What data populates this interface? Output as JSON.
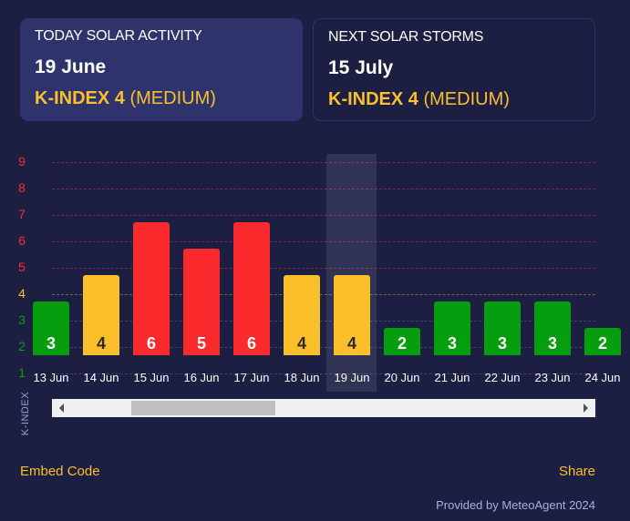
{
  "today": {
    "title": "TODAY SOLAR ACTIVITY",
    "date": "19 June",
    "kindex": "K-INDEX 4",
    "level": "(MEDIUM)"
  },
  "next": {
    "title": "NEXT SOLAR STORMS",
    "date": "15 July",
    "kindex": "K-INDEX 4",
    "level": "(MEDIUM)"
  },
  "colors": {
    "low": "#069e0f",
    "medium": "#fbbf2c",
    "high": "#fb2a2c"
  },
  "chart_data": {
    "type": "bar",
    "ylabel": "K-INDEX",
    "ylim": [
      1,
      9
    ],
    "yticks": [
      "1",
      "2",
      "3",
      "4",
      "5",
      "6",
      "7",
      "8",
      "9"
    ],
    "categories": [
      "13 Jun",
      "14 Jun",
      "15 Jun",
      "16 Jun",
      "17 Jun",
      "18 Jun",
      "19 Jun",
      "20 Jun",
      "21 Jun",
      "22 Jun",
      "23 Jun",
      "24 Jun"
    ],
    "values": [
      3,
      4,
      6,
      5,
      6,
      4,
      4,
      2,
      3,
      3,
      3,
      2
    ],
    "highlighted": "19 Jun",
    "grid": true
  },
  "scroll": {
    "position": 0.18
  },
  "footer": {
    "embed": "Embed Code",
    "share": "Share",
    "credit": "Provided by MeteoAgent 2024"
  }
}
